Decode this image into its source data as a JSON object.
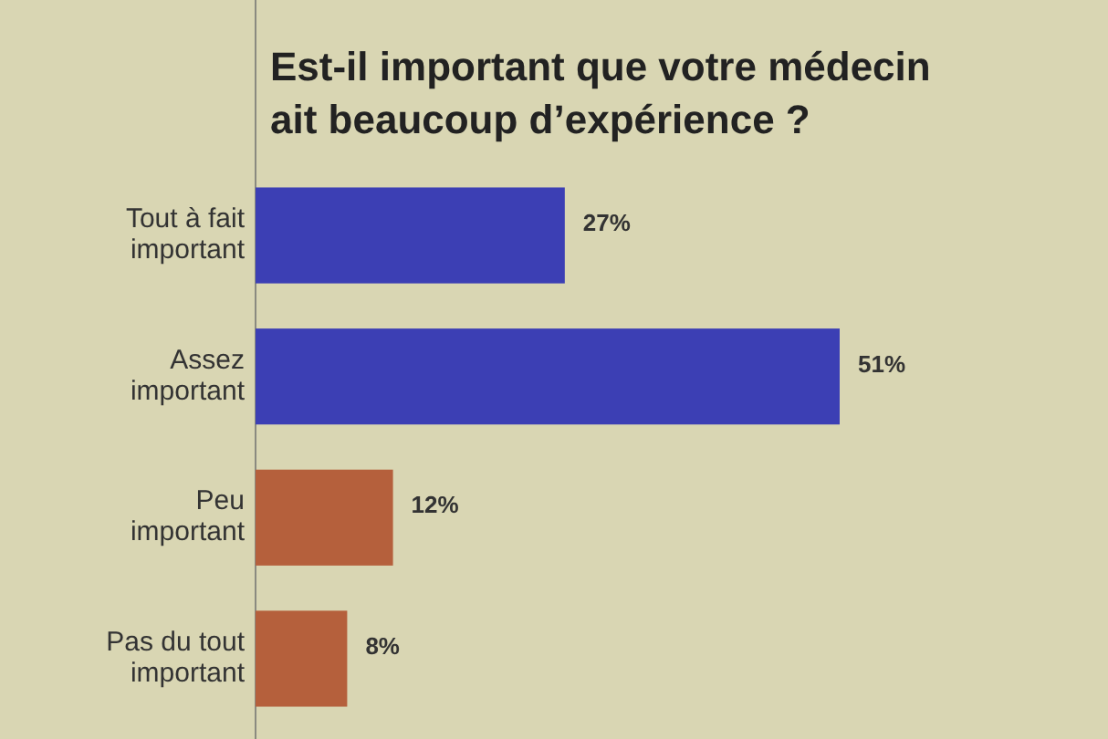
{
  "chart_data": {
    "type": "bar",
    "orientation": "horizontal",
    "title": "Est-il important que votre médecin ait beaucoup d’expérience ?",
    "categories": [
      "Tout à fait important",
      "Assez important",
      "Peu important",
      "Pas du tout important"
    ],
    "values": [
      27,
      51,
      12,
      8
    ],
    "colors": [
      "#3c3fb4",
      "#3c3fb4",
      "#b5603c",
      "#b5603c"
    ],
    "value_labels": [
      "27%",
      "51%",
      "12%",
      "8%"
    ]
  }
}
